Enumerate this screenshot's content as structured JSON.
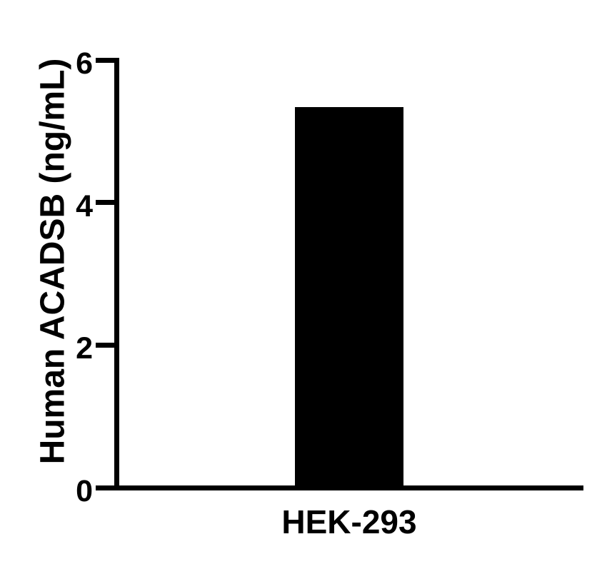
{
  "chart_data": {
    "type": "bar",
    "title": "",
    "categories": [
      "HEK-293"
    ],
    "values": [
      5.34
    ],
    "xlabel": "",
    "ylabel": "Human ACADSB (ng/mL)",
    "ylim": [
      0,
      6
    ],
    "yticks": [
      0,
      2,
      4,
      6
    ],
    "ytick_labels": [
      "0",
      "2",
      "4",
      "6"
    ],
    "bar_color": "#000000",
    "axis_color": "#000000",
    "background_color": "#ffffff",
    "grid": "off",
    "legend": "none"
  }
}
